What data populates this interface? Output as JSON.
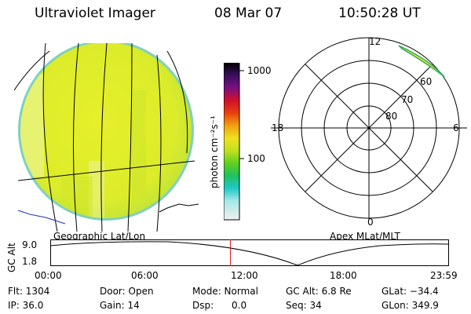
{
  "header": {
    "title": "Ultraviolet Imager",
    "date": "08 Mar 07",
    "time": "10:50:28 UT"
  },
  "colorbar": {
    "label": "photon cm⁻²s⁻¹",
    "ticks": [
      "1000",
      "100"
    ]
  },
  "left_panel": {
    "caption": "Geographic Lat/Lon"
  },
  "right_panel": {
    "caption": "Apex MLat/MLT",
    "mlt_labels": {
      "top": "12",
      "left": "18",
      "right": "6",
      "bottom": "0"
    },
    "lat_labels": [
      "60",
      "70",
      "80"
    ]
  },
  "altitude_plot": {
    "ylabel": "GC Alt",
    "yticks": [
      "9.0",
      "1.8"
    ],
    "xticks": [
      "00:00",
      "06:00",
      "12:00",
      "18:00",
      "23:59"
    ],
    "marker_fraction": 0.4517
  },
  "info": {
    "flt": "Flt: 1304",
    "ip": "IP: 36.0",
    "door": "Door: Open",
    "gain": "Gain: 14",
    "mode": "Mode: Normal",
    "dsp": "Dsp:      0.0",
    "gc_alt": "GC Alt: 6.8 Re",
    "seq": "Seq: 34",
    "glat": "GLat: −34.4",
    "glon": "GLon: 349.9"
  },
  "colors": {
    "accent_marker": "#e02020",
    "coast": "#2030c0"
  }
}
